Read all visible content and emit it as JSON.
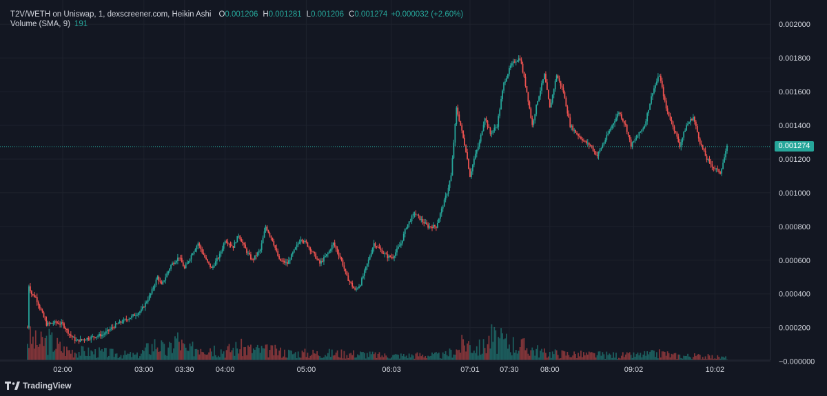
{
  "header": {
    "title": "T2V/WETH on Uniswap, 1, dexscreener.com, Heikin Ashi",
    "o_label": "O",
    "o_value": "0.001206",
    "h_label": "H",
    "h_value": "0.001281",
    "l_label": "L",
    "l_value": "0.001206",
    "c_label": "C",
    "c_value": "0.001274",
    "change": "+0.000032 (+2.60%)",
    "volume_label": "Volume (SMA, 9)",
    "volume_value": "191"
  },
  "last_price_label": "0.001274",
  "branding": {
    "name": "TradingView"
  },
  "colors": {
    "background": "#131722",
    "up": "#26a69a",
    "down": "#ef5350",
    "grid": "#1e222d",
    "text": "#d1d4dc"
  },
  "chart_data": {
    "type": "candlestick",
    "style": "Heikin Ashi",
    "symbol": "T2V/WETH",
    "y_ticks": [
      "0.002000",
      "0.001800",
      "0.001600",
      "0.001400",
      "0.001200",
      "0.001000",
      "0.000800",
      "0.000600",
      "0.000400",
      "0.000200",
      "−0.000000"
    ],
    "ylim": [
      -1e-05,
      0.00205
    ],
    "x_ticks": [
      {
        "label": "02:00",
        "t": 120
      },
      {
        "label": "03:00",
        "t": 180
      },
      {
        "label": "03:30",
        "t": 210
      },
      {
        "label": "04:00",
        "t": 240
      },
      {
        "label": "05:00",
        "t": 300
      },
      {
        "label": "06:03",
        "t": 363
      },
      {
        "label": "07:01",
        "t": 421
      },
      {
        "label": "07:30",
        "t": 450
      },
      {
        "label": "08:00",
        "t": 480
      },
      {
        "label": "09:02",
        "t": 542
      },
      {
        "label": "10:02",
        "t": 602
      }
    ],
    "last_price": 0.001274,
    "close_anchors": [
      [
        94,
        0.0002
      ],
      [
        95,
        0.00045
      ],
      [
        97,
        0.0004
      ],
      [
        100,
        0.00038
      ],
      [
        105,
        0.00028
      ],
      [
        108,
        0.00022
      ],
      [
        115,
        0.00023
      ],
      [
        120,
        0.00022
      ],
      [
        125,
        0.00016
      ],
      [
        130,
        0.00012
      ],
      [
        140,
        0.00014
      ],
      [
        150,
        0.00016
      ],
      [
        160,
        0.00022
      ],
      [
        170,
        0.00026
      ],
      [
        178,
        0.0003
      ],
      [
        185,
        0.0004
      ],
      [
        190,
        0.0005
      ],
      [
        193,
        0.00045
      ],
      [
        200,
        0.00057
      ],
      [
        206,
        0.00062
      ],
      [
        210,
        0.00055
      ],
      [
        215,
        0.00063
      ],
      [
        220,
        0.0007
      ],
      [
        226,
        0.0006
      ],
      [
        230,
        0.00055
      ],
      [
        236,
        0.00063
      ],
      [
        240,
        0.00072
      ],
      [
        246,
        0.00068
      ],
      [
        250,
        0.00075
      ],
      [
        256,
        0.00065
      ],
      [
        260,
        0.0006
      ],
      [
        266,
        0.00066
      ],
      [
        270,
        0.0008
      ],
      [
        275,
        0.00072
      ],
      [
        280,
        0.0006
      ],
      [
        286,
        0.00058
      ],
      [
        290,
        0.00064
      ],
      [
        296,
        0.00073
      ],
      [
        300,
        0.0007
      ],
      [
        306,
        0.00063
      ],
      [
        310,
        0.00058
      ],
      [
        316,
        0.00064
      ],
      [
        320,
        0.0007
      ],
      [
        326,
        0.0006
      ],
      [
        330,
        0.0005
      ],
      [
        336,
        0.00042
      ],
      [
        340,
        0.00046
      ],
      [
        346,
        0.0006
      ],
      [
        350,
        0.0007
      ],
      [
        356,
        0.00065
      ],
      [
        360,
        0.00062
      ],
      [
        364,
        0.00062
      ],
      [
        370,
        0.0007
      ],
      [
        374,
        0.0008
      ],
      [
        380,
        0.00088
      ],
      [
        386,
        0.00083
      ],
      [
        390,
        0.0008
      ],
      [
        396,
        0.0008
      ],
      [
        400,
        0.0009
      ],
      [
        404,
        0.001
      ],
      [
        407,
        0.0011
      ],
      [
        411,
        0.0015
      ],
      [
        414,
        0.0014
      ],
      [
        418,
        0.00125
      ],
      [
        421,
        0.0011
      ],
      [
        424,
        0.0012
      ],
      [
        428,
        0.0013
      ],
      [
        432,
        0.00145
      ],
      [
        436,
        0.00135
      ],
      [
        441,
        0.0014
      ],
      [
        446,
        0.00165
      ],
      [
        451,
        0.00175
      ],
      [
        454,
        0.00178
      ],
      [
        458,
        0.0018
      ],
      [
        463,
        0.0016
      ],
      [
        467,
        0.0014
      ],
      [
        471,
        0.00155
      ],
      [
        476,
        0.0017
      ],
      [
        480,
        0.0015
      ],
      [
        485,
        0.0017
      ],
      [
        490,
        0.0016
      ],
      [
        495,
        0.0014
      ],
      [
        500,
        0.00135
      ],
      [
        506,
        0.0013
      ],
      [
        510,
        0.00128
      ],
      [
        515,
        0.00122
      ],
      [
        520,
        0.0013
      ],
      [
        526,
        0.0014
      ],
      [
        531,
        0.00148
      ],
      [
        536,
        0.0014
      ],
      [
        540,
        0.00128
      ],
      [
        546,
        0.00135
      ],
      [
        550,
        0.0014
      ],
      [
        556,
        0.0016
      ],
      [
        561,
        0.0017
      ],
      [
        566,
        0.0015
      ],
      [
        571,
        0.0014
      ],
      [
        576,
        0.00128
      ],
      [
        581,
        0.0014
      ],
      [
        586,
        0.00145
      ],
      [
        591,
        0.0013
      ],
      [
        596,
        0.0012
      ],
      [
        601,
        0.00115
      ],
      [
        606,
        0.00112
      ],
      [
        611,
        0.00127
      ]
    ],
    "volume_peaks": [
      [
        94,
        190
      ],
      [
        102,
        140
      ],
      [
        110,
        170
      ],
      [
        117,
        120
      ],
      [
        120,
        90
      ],
      [
        138,
        70
      ],
      [
        150,
        65
      ],
      [
        175,
        40
      ],
      [
        190,
        150
      ],
      [
        197,
        60
      ],
      [
        204,
        190
      ],
      [
        212,
        70
      ],
      [
        222,
        140
      ],
      [
        240,
        80
      ],
      [
        250,
        110
      ],
      [
        260,
        90
      ],
      [
        274,
        80
      ],
      [
        290,
        60
      ],
      [
        310,
        60
      ],
      [
        340,
        55
      ],
      [
        355,
        40
      ],
      [
        375,
        40
      ],
      [
        384,
        45
      ],
      [
        402,
        40
      ],
      [
        407,
        70
      ],
      [
        412,
        90
      ],
      [
        416,
        140
      ],
      [
        419,
        150
      ],
      [
        423,
        120
      ],
      [
        430,
        100
      ],
      [
        434,
        160
      ],
      [
        437,
        190
      ],
      [
        440,
        170
      ],
      [
        448,
        150
      ],
      [
        452,
        140
      ],
      [
        466,
        100
      ],
      [
        472,
        80
      ],
      [
        476,
        60
      ],
      [
        482,
        60
      ],
      [
        500,
        50
      ],
      [
        520,
        45
      ],
      [
        540,
        40
      ],
      [
        560,
        55
      ],
      [
        565,
        60
      ],
      [
        570,
        40
      ],
      [
        590,
        35
      ],
      [
        605,
        25
      ],
      [
        611,
        20
      ]
    ]
  }
}
